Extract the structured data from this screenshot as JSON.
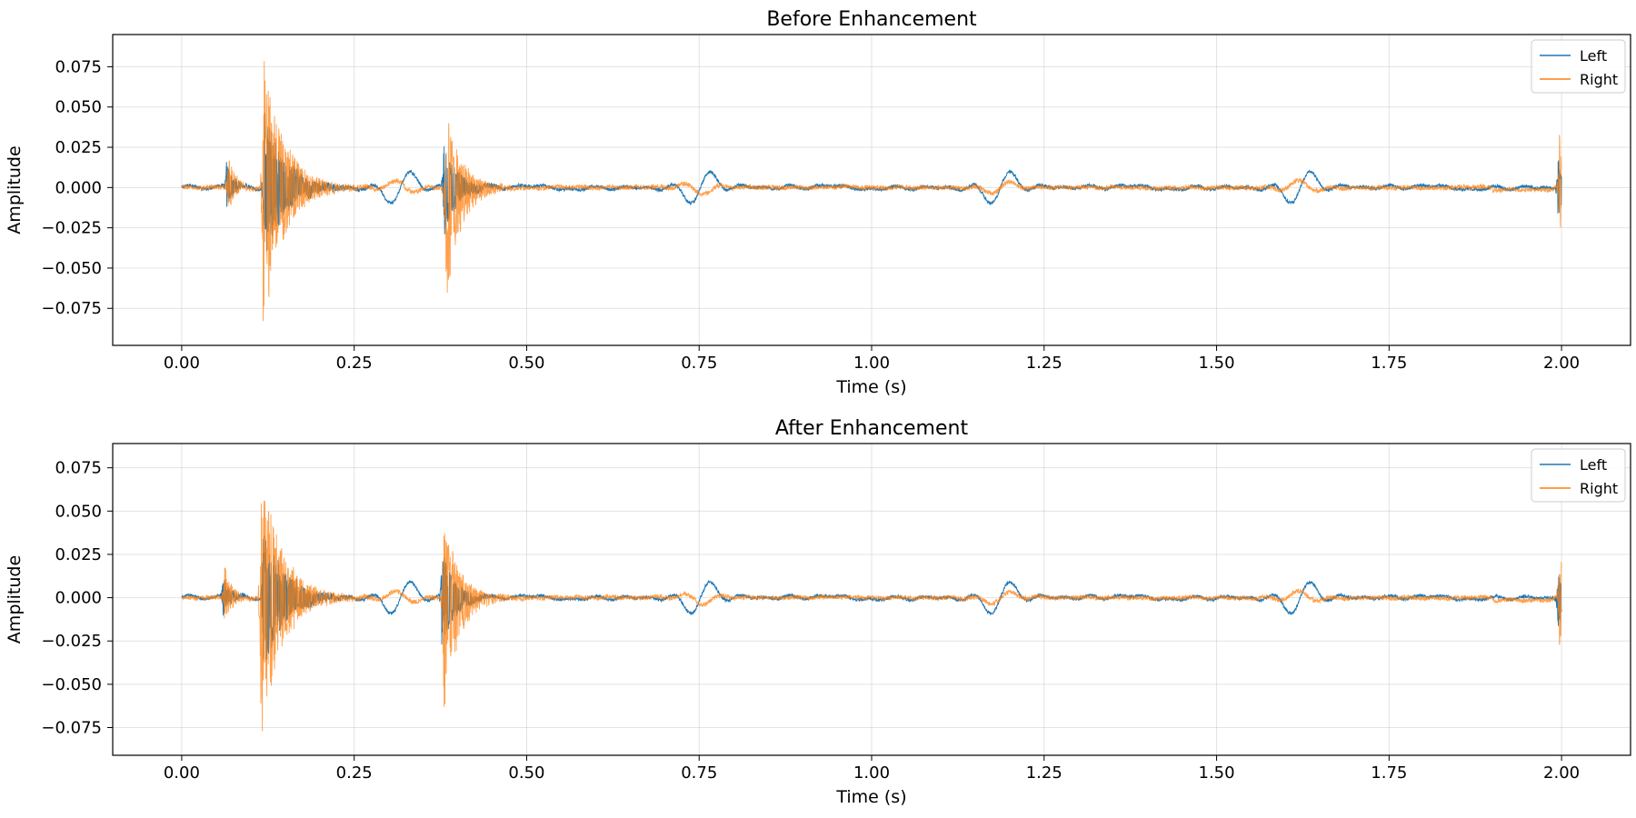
{
  "chart_data": [
    {
      "type": "line",
      "title": "Before Enhancement",
      "xlabel": "Time (s)",
      "ylabel": "Amplitude",
      "xlim": [
        -0.1,
        2.1
      ],
      "ylim": [
        -0.098,
        0.095
      ],
      "xticks": [
        0.0,
        0.25,
        0.5,
        0.75,
        1.0,
        1.25,
        1.5,
        1.75,
        2.0
      ],
      "xtick_labels": [
        "0.00",
        "0.25",
        "0.50",
        "0.75",
        "1.00",
        "1.25",
        "1.50",
        "1.75",
        "2.00"
      ],
      "yticks": [
        -0.075,
        -0.05,
        -0.025,
        0.0,
        0.025,
        0.05,
        0.075
      ],
      "ytick_labels": [
        "−0.075",
        "−0.050",
        "−0.025",
        "0.000",
        "0.025",
        "0.050",
        "0.075"
      ],
      "grid": true,
      "legend": "upper right",
      "series": [
        {
          "name": "Left",
          "color": "#1f77b4",
          "wander": [
            0.0,
            0.0012,
            0.0008,
            0.0022,
            0.0015,
            0.0025,
            0.0018,
            0.0028,
            0.003,
            0.002,
            0.0018,
            0.002
          ],
          "noise": 0.0018,
          "bursts": [
            {
              "t": 0.065,
              "peak_pos": 0.015,
              "peak_neg": -0.014,
              "decay": 0.01
            },
            {
              "t": 0.12,
              "peak_pos": 0.05,
              "peak_neg": -0.045,
              "decay": 0.03
            },
            {
              "t": 0.38,
              "peak_pos": 0.028,
              "peak_neg": -0.032,
              "decay": 0.02
            },
            {
              "t": 1.995,
              "peak_pos": 0.02,
              "peak_neg": -0.022,
              "decay": 0.006
            }
          ]
        },
        {
          "name": "Right",
          "color": "#ff7f0e",
          "wander": [
            0.0,
            0.0005,
            0.0004,
            0.0008,
            0.0006,
            0.0009,
            0.0007,
            0.0009,
            0.001,
            0.0008,
            0.0007,
            0.0008
          ],
          "noise": 0.0024,
          "bursts": [
            {
              "t": 0.067,
              "peak_pos": 0.024,
              "peak_neg": -0.017,
              "decay": 0.01
            },
            {
              "t": 0.118,
              "peak_pos": 0.085,
              "peak_neg": -0.09,
              "decay": 0.03
            },
            {
              "t": 0.383,
              "peak_pos": 0.05,
              "peak_neg": -0.075,
              "decay": 0.022
            },
            {
              "t": 1.997,
              "peak_pos": 0.039,
              "peak_neg": -0.036,
              "decay": 0.006
            }
          ]
        }
      ]
    },
    {
      "type": "line",
      "title": "After Enhancement",
      "xlabel": "Time (s)",
      "ylabel": "Amplitude",
      "xlim": [
        -0.1,
        2.1
      ],
      "ylim": [
        -0.091,
        0.089
      ],
      "xticks": [
        0.0,
        0.25,
        0.5,
        0.75,
        1.0,
        1.25,
        1.5,
        1.75,
        2.0
      ],
      "xtick_labels": [
        "0.00",
        "0.25",
        "0.50",
        "0.75",
        "1.00",
        "1.25",
        "1.50",
        "1.75",
        "2.00"
      ],
      "yticks": [
        -0.075,
        -0.05,
        -0.025,
        0.0,
        0.025,
        0.05,
        0.075
      ],
      "ytick_labels": [
        "−0.075",
        "−0.050",
        "−0.025",
        "0.000",
        "0.025",
        "0.050",
        "0.075"
      ],
      "grid": true,
      "legend": "upper right",
      "series": [
        {
          "name": "Left",
          "color": "#1f77b4",
          "wander": [
            0.0,
            0.0011,
            0.0007,
            0.002,
            0.0014,
            0.0023,
            0.0017,
            0.0026,
            0.0028,
            0.0019,
            0.0017,
            0.0019
          ],
          "noise": 0.0016,
          "bursts": [
            {
              "t": 0.06,
              "peak_pos": 0.014,
              "peak_neg": -0.013,
              "decay": 0.01
            },
            {
              "t": 0.118,
              "peak_pos": 0.047,
              "peak_neg": -0.042,
              "decay": 0.03
            },
            {
              "t": 0.377,
              "peak_pos": 0.026,
              "peak_neg": -0.03,
              "decay": 0.02
            },
            {
              "t": 1.995,
              "peak_pos": 0.019,
              "peak_neg": -0.02,
              "decay": 0.006
            }
          ]
        },
        {
          "name": "Right",
          "color": "#ff7f0e",
          "wander": [
            0.0,
            0.0005,
            0.0004,
            0.0007,
            0.0006,
            0.0008,
            0.0006,
            0.0008,
            0.0009,
            0.0007,
            0.0006,
            0.0007
          ],
          "noise": 0.0022,
          "bursts": [
            {
              "t": 0.062,
              "peak_pos": 0.022,
              "peak_neg": -0.016,
              "decay": 0.01
            },
            {
              "t": 0.115,
              "peak_pos": 0.08,
              "peak_neg": -0.083,
              "decay": 0.03
            },
            {
              "t": 0.38,
              "peak_pos": 0.046,
              "peak_neg": -0.07,
              "decay": 0.022
            },
            {
              "t": 1.997,
              "peak_pos": 0.036,
              "peak_neg": -0.034,
              "decay": 0.006
            }
          ]
        }
      ]
    }
  ]
}
